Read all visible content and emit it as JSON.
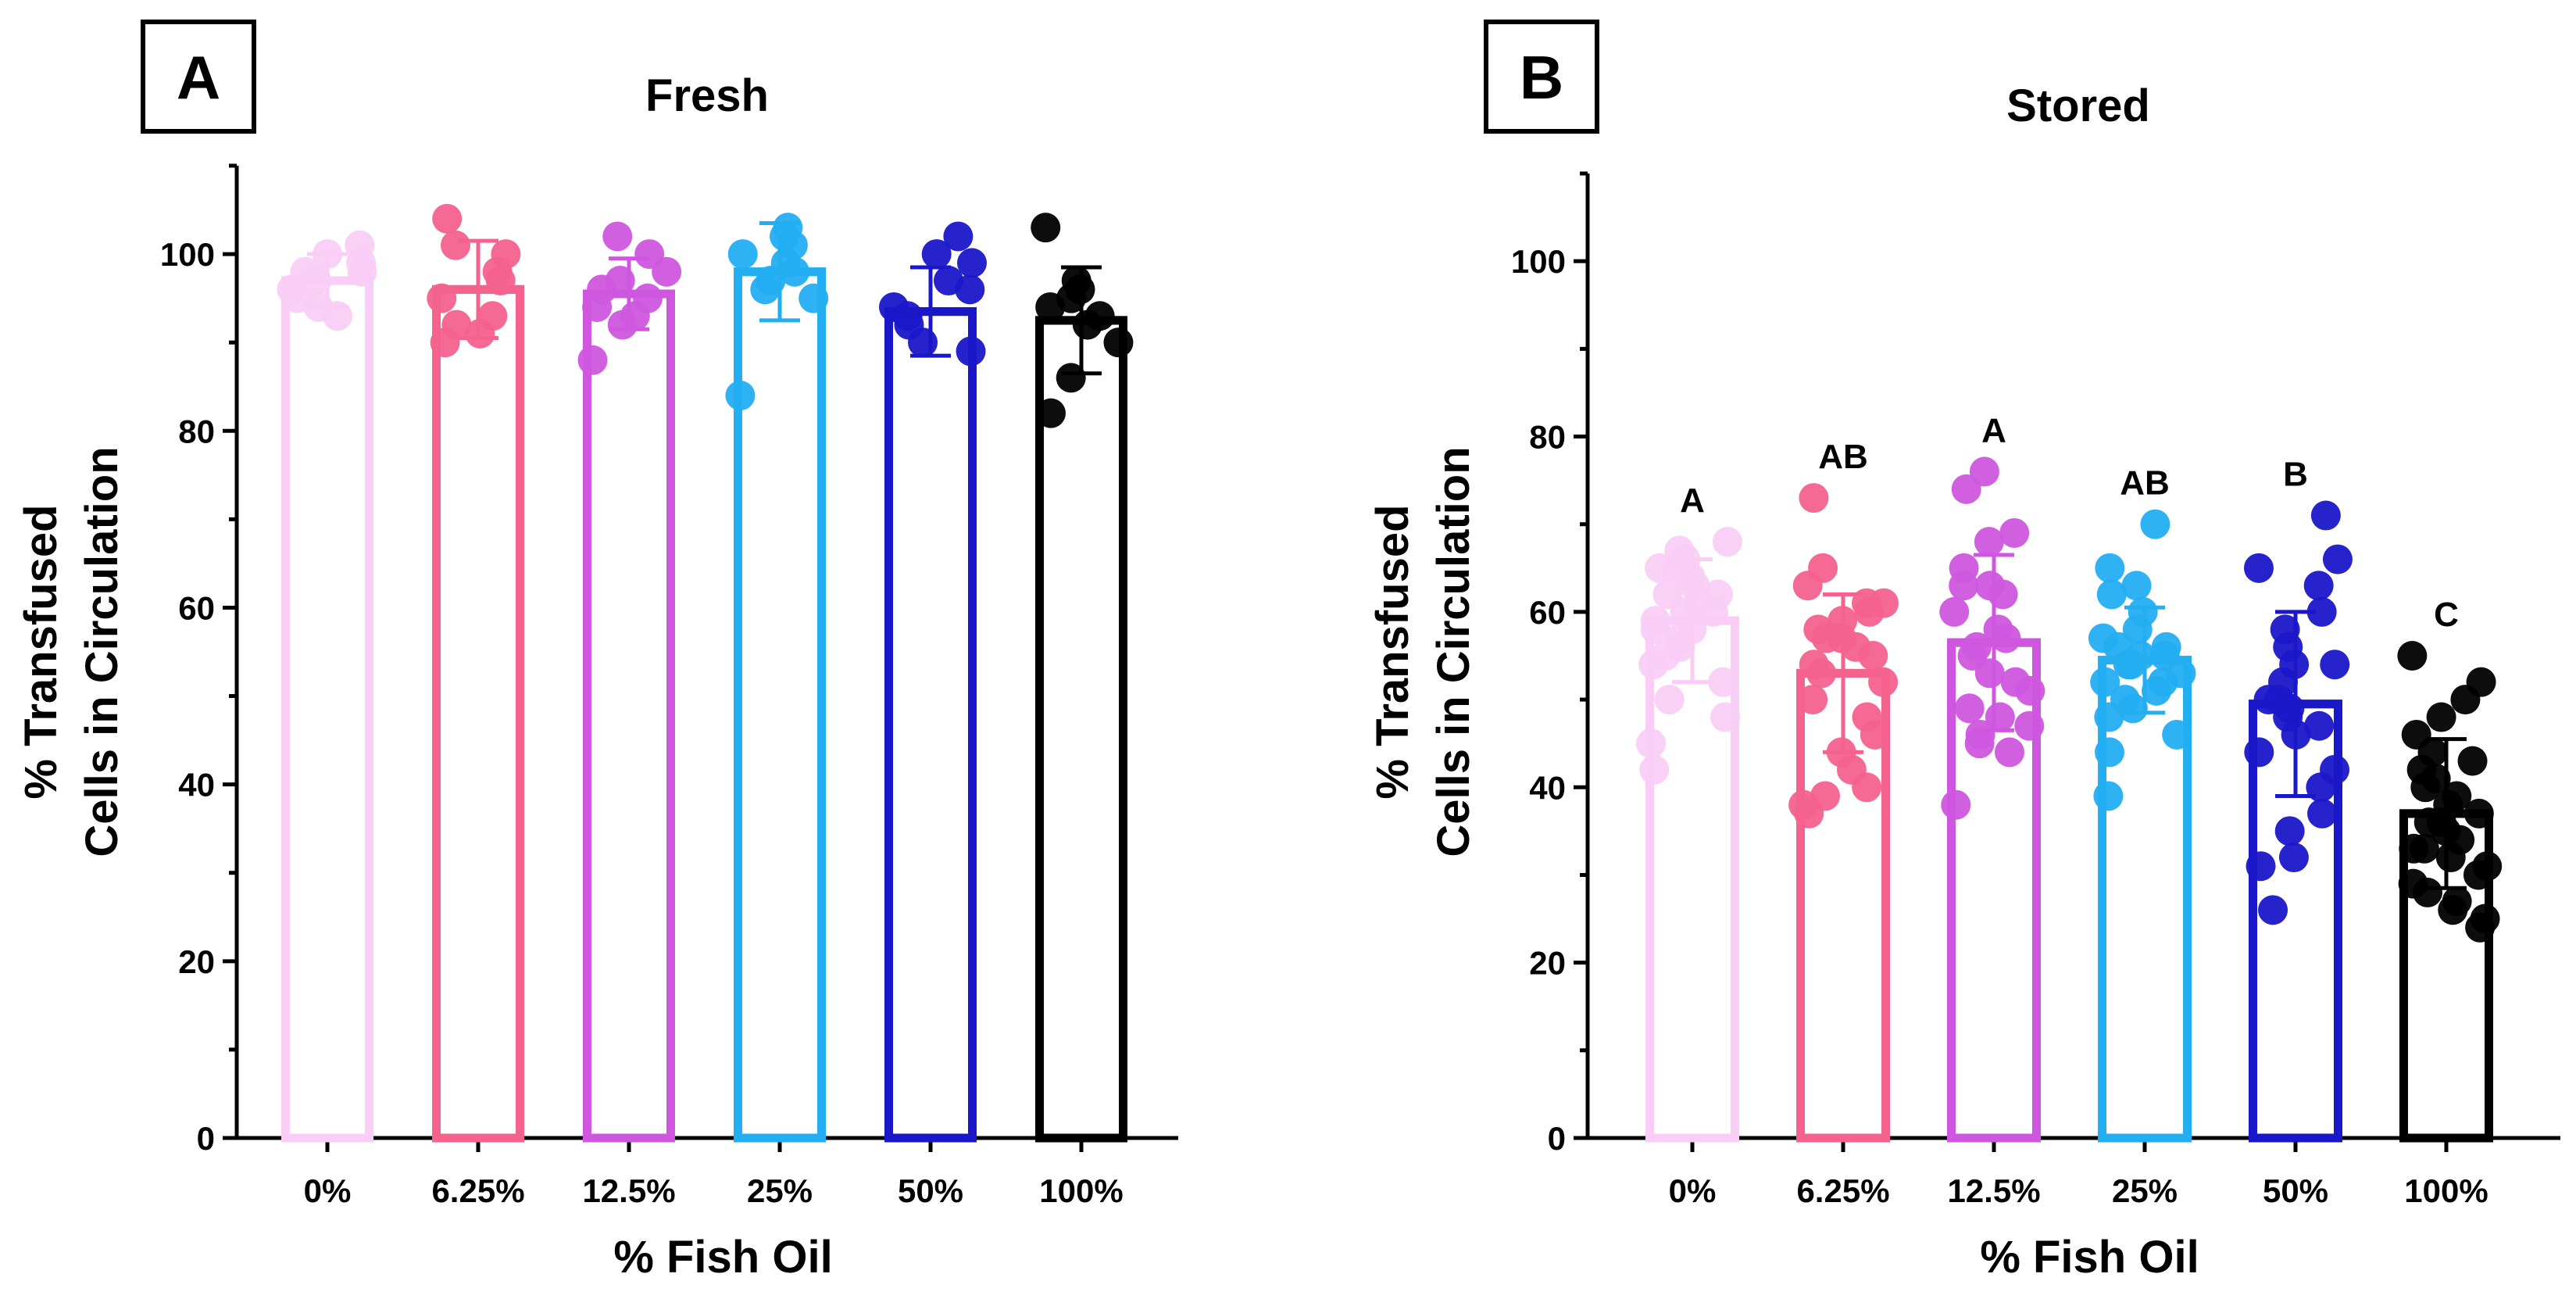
{
  "chart_data": [
    {
      "type": "bar",
      "panel_label": "A",
      "title": "Fresh",
      "xlabel": "% Fish Oil",
      "ylabel": [
        "% Transfused",
        "Cells in Circulation"
      ],
      "ylim": [
        0,
        110
      ],
      "yticks": [
        0,
        20,
        40,
        60,
        80,
        100
      ],
      "ytick_labels": [
        "0",
        "20",
        "40",
        "60",
        "80",
        "100"
      ],
      "categories": [
        "0%",
        "6.25%",
        "12.5%",
        "25%",
        "50%",
        "100%"
      ],
      "colors": [
        "#f9cdf5",
        "#f4628e",
        "#cf57df",
        "#23aef2",
        "#1a17c9",
        "#000000"
      ],
      "values": [
        97,
        96,
        95.5,
        98,
        93.5,
        92.5
      ],
      "sd": [
        3,
        5.5,
        4,
        5.5,
        5,
        6
      ],
      "significance": [],
      "points": [
        [
          101,
          98,
          96,
          94,
          99,
          95,
          97,
          100,
          93,
          98
        ],
        [
          104,
          100,
          98,
          95,
          92,
          90,
          97,
          101,
          91,
          93
        ],
        [
          102,
          100,
          97,
          95,
          93,
          88,
          96,
          98,
          92,
          94
        ],
        [
          103,
          101,
          100,
          97,
          95,
          84,
          99,
          98,
          96,
          102
        ],
        [
          102,
          100,
          97,
          94,
          92,
          89,
          96,
          90,
          93,
          99
        ],
        [
          103,
          96,
          95,
          93,
          92,
          90,
          86,
          82,
          94,
          97
        ]
      ]
    },
    {
      "type": "bar",
      "panel_label": "B",
      "title": "Stored",
      "xlabel": "% Fish Oil",
      "ylabel": [
        "% Transfused",
        "Cells in Circulation"
      ],
      "ylim": [
        0,
        110
      ],
      "yticks": [
        0,
        20,
        40,
        60,
        80,
        100
      ],
      "ytick_labels": [
        "0",
        "20",
        "40",
        "60",
        "80",
        "100"
      ],
      "categories": [
        "0%",
        "6.25%",
        "12.5%",
        "25%",
        "50%",
        "100%"
      ],
      "colors": [
        "#f9cdf5",
        "#f4628e",
        "#cf57df",
        "#23aef2",
        "#1a17c9",
        "#000000"
      ],
      "values": [
        59,
        53,
        56.5,
        54.5,
        49.5,
        37
      ],
      "sd": [
        7,
        9,
        10,
        6,
        10.5,
        8.5
      ],
      "significance": [
        "A",
        "AB",
        "A",
        "AB",
        "B",
        "C"
      ],
      "points": [
        [
          68,
          67,
          66,
          65,
          64,
          63,
          62,
          61,
          60,
          60,
          59,
          58,
          57,
          56,
          55,
          54,
          52,
          50,
          48,
          45,
          42,
          65,
          62,
          58
        ],
        [
          73,
          65,
          63,
          61,
          60,
          59,
          58,
          57,
          56,
          55,
          54,
          52,
          50,
          48,
          46,
          44,
          42,
          40,
          39,
          38,
          37,
          61,
          57,
          53
        ],
        [
          76,
          74,
          69,
          68,
          65,
          63,
          62,
          60,
          58,
          56,
          55,
          53,
          51,
          49,
          48,
          47,
          46,
          45,
          44,
          38,
          63,
          57,
          52
        ],
        [
          70,
          65,
          63,
          62,
          60,
          58,
          57,
          56,
          55,
          55,
          54,
          53,
          52,
          51,
          50,
          49,
          48,
          46,
          44,
          39,
          56,
          54,
          52
        ],
        [
          71,
          66,
          65,
          63,
          60,
          58,
          56,
          54,
          52,
          50,
          49,
          48,
          46,
          44,
          42,
          40,
          37,
          35,
          32,
          31,
          26,
          54,
          50,
          47
        ],
        [
          55,
          52,
          50,
          48,
          46,
          44,
          43,
          42,
          40,
          39,
          38,
          37,
          36,
          35,
          34,
          33,
          32,
          31,
          30,
          29,
          28,
          27,
          26,
          25,
          24,
          41,
          36,
          33
        ]
      ]
    }
  ]
}
